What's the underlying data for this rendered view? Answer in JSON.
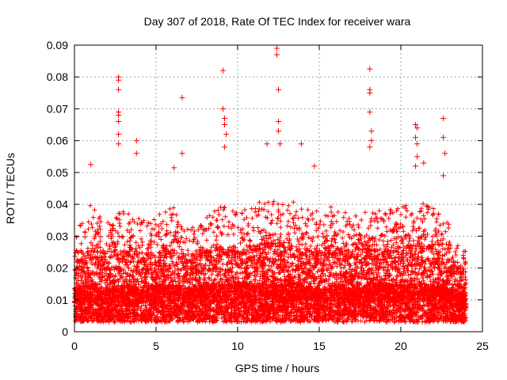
{
  "chart_data": {
    "type": "scatter",
    "title": "Day 307 of 2018, Rate Of TEC Index for receiver wara",
    "xlabel": "GPS time / hours",
    "ylabel": "ROTI / TECUs",
    "xlim": [
      0,
      25
    ],
    "ylim": [
      0,
      0.09
    ],
    "x_ticks": [
      0,
      5,
      10,
      15,
      20,
      25
    ],
    "x_tick_labels": [
      "0",
      "5",
      "10",
      "15",
      "20",
      "25"
    ],
    "y_ticks": [
      0,
      0.01,
      0.02,
      0.03,
      0.04,
      0.05,
      0.06,
      0.07,
      0.08,
      0.09
    ],
    "y_tick_labels": [
      "0",
      "0.01",
      "0.02",
      "0.03",
      "0.04",
      "0.05",
      "0.06",
      "0.07",
      "0.08",
      "0.09"
    ],
    "grid": true,
    "marker": "+",
    "color": "#ff0000",
    "x_range_of_data": [
      0,
      24
    ],
    "notable_points": [
      {
        "x": 2.7,
        "y": 0.08
      },
      {
        "x": 2.7,
        "y": 0.079
      },
      {
        "x": 2.7,
        "y": 0.076
      },
      {
        "x": 2.7,
        "y": 0.069
      },
      {
        "x": 2.7,
        "y": 0.068
      },
      {
        "x": 2.7,
        "y": 0.066
      },
      {
        "x": 2.7,
        "y": 0.062
      },
      {
        "x": 2.7,
        "y": 0.059
      },
      {
        "x": 3.8,
        "y": 0.06
      },
      {
        "x": 3.8,
        "y": 0.056
      },
      {
        "x": 6.6,
        "y": 0.0735
      },
      {
        "x": 6.6,
        "y": 0.056
      },
      {
        "x": 6.1,
        "y": 0.0515
      },
      {
        "x": 9.1,
        "y": 0.082
      },
      {
        "x": 9.1,
        "y": 0.07
      },
      {
        "x": 9.2,
        "y": 0.067
      },
      {
        "x": 9.2,
        "y": 0.065
      },
      {
        "x": 9.3,
        "y": 0.062
      },
      {
        "x": 9.2,
        "y": 0.058
      },
      {
        "x": 1.0,
        "y": 0.0525
      },
      {
        "x": 11.8,
        "y": 0.059
      },
      {
        "x": 12.4,
        "y": 0.089
      },
      {
        "x": 12.4,
        "y": 0.087
      },
      {
        "x": 12.5,
        "y": 0.076
      },
      {
        "x": 12.5,
        "y": 0.066
      },
      {
        "x": 12.5,
        "y": 0.063
      },
      {
        "x": 12.6,
        "y": 0.059
      },
      {
        "x": 13.9,
        "y": 0.059
      },
      {
        "x": 14.7,
        "y": 0.052
      },
      {
        "x": 18.1,
        "y": 0.0825
      },
      {
        "x": 18.1,
        "y": 0.076
      },
      {
        "x": 18.1,
        "y": 0.075
      },
      {
        "x": 18.1,
        "y": 0.069
      },
      {
        "x": 18.2,
        "y": 0.063
      },
      {
        "x": 18.2,
        "y": 0.06
      },
      {
        "x": 18.1,
        "y": 0.058
      },
      {
        "x": 20.9,
        "y": 0.065
      },
      {
        "x": 21.0,
        "y": 0.064
      },
      {
        "x": 20.9,
        "y": 0.061
      },
      {
        "x": 21.0,
        "y": 0.059
      },
      {
        "x": 21.0,
        "y": 0.055
      },
      {
        "x": 20.9,
        "y": 0.052
      },
      {
        "x": 21.4,
        "y": 0.053
      },
      {
        "x": 22.6,
        "y": 0.067
      },
      {
        "x": 22.6,
        "y": 0.061
      },
      {
        "x": 22.7,
        "y": 0.056
      },
      {
        "x": 22.6,
        "y": 0.049
      }
    ],
    "envelope": [
      {
        "x": 0,
        "median": 0.009,
        "p90": 0.02,
        "max": 0.03
      },
      {
        "x": 1,
        "median": 0.01,
        "p90": 0.026,
        "max": 0.04
      },
      {
        "x": 2,
        "median": 0.009,
        "p90": 0.024,
        "max": 0.035
      },
      {
        "x": 3,
        "median": 0.01,
        "p90": 0.026,
        "max": 0.038
      },
      {
        "x": 4,
        "median": 0.009,
        "p90": 0.025,
        "max": 0.036
      },
      {
        "x": 5,
        "median": 0.01,
        "p90": 0.024,
        "max": 0.036
      },
      {
        "x": 6,
        "median": 0.01,
        "p90": 0.027,
        "max": 0.04
      },
      {
        "x": 7,
        "median": 0.009,
        "p90": 0.022,
        "max": 0.032
      },
      {
        "x": 8,
        "median": 0.01,
        "p90": 0.025,
        "max": 0.036
      },
      {
        "x": 9,
        "median": 0.01,
        "p90": 0.026,
        "max": 0.04
      },
      {
        "x": 10,
        "median": 0.01,
        "p90": 0.025,
        "max": 0.038
      },
      {
        "x": 11,
        "median": 0.01,
        "p90": 0.027,
        "max": 0.04
      },
      {
        "x": 12,
        "median": 0.01,
        "p90": 0.028,
        "max": 0.042
      },
      {
        "x": 13,
        "median": 0.01,
        "p90": 0.027,
        "max": 0.042
      },
      {
        "x": 14,
        "median": 0.01,
        "p90": 0.026,
        "max": 0.04
      },
      {
        "x": 15,
        "median": 0.009,
        "p90": 0.025,
        "max": 0.038
      },
      {
        "x": 16,
        "median": 0.01,
        "p90": 0.026,
        "max": 0.04
      },
      {
        "x": 17,
        "median": 0.009,
        "p90": 0.024,
        "max": 0.036
      },
      {
        "x": 18,
        "median": 0.01,
        "p90": 0.026,
        "max": 0.038
      },
      {
        "x": 19,
        "median": 0.01,
        "p90": 0.025,
        "max": 0.038
      },
      {
        "x": 20,
        "median": 0.01,
        "p90": 0.026,
        "max": 0.04
      },
      {
        "x": 21,
        "median": 0.01,
        "p90": 0.028,
        "max": 0.042
      },
      {
        "x": 22,
        "median": 0.01,
        "p90": 0.026,
        "max": 0.04
      },
      {
        "x": 23,
        "median": 0.009,
        "p90": 0.022,
        "max": 0.034
      },
      {
        "x": 24,
        "median": 0.008,
        "p90": 0.018,
        "max": 0.025
      }
    ]
  }
}
